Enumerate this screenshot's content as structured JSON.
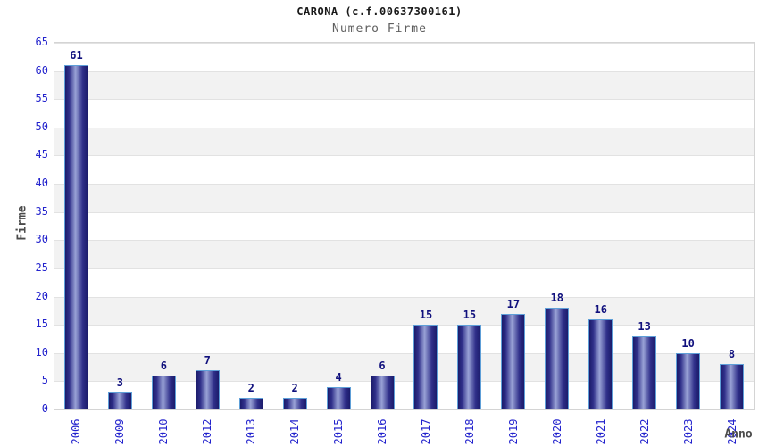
{
  "header": {
    "title": "CARONA (c.f.00637300161)",
    "subtitle": "Numero Firme"
  },
  "chart_data": {
    "type": "bar",
    "title": "CARONA (c.f.00637300161)",
    "subtitle": "Numero Firme",
    "xlabel": "Anno",
    "ylabel": "Firme",
    "categories": [
      "2006",
      "2009",
      "2010",
      "2012",
      "2013",
      "2014",
      "2015",
      "2016",
      "2017",
      "2018",
      "2019",
      "2020",
      "2021",
      "2022",
      "2023",
      "2024"
    ],
    "values": [
      61,
      3,
      6,
      7,
      2,
      2,
      4,
      6,
      15,
      15,
      17,
      18,
      16,
      13,
      10,
      8
    ],
    "ylim": [
      0,
      65
    ],
    "ytick_step": 5,
    "grid": true,
    "band_fill": "alternating horizontal bands every 5 units, white and light gray",
    "legend": "none"
  },
  "colors": {
    "tick_label_blue": "#2323cd",
    "value_label_navy": "#10107d",
    "bar_dark": "#1b1b6a",
    "bar_light": "#99a2d6",
    "bar_border": "#5e9fd8",
    "band_gray": "#f2f2f2",
    "gridline": "#e2e2e2",
    "plot_border": "#d4d4d4",
    "axis_title_gray": "#4a4a4a",
    "subtitle_gray": "#5f5f5f"
  }
}
